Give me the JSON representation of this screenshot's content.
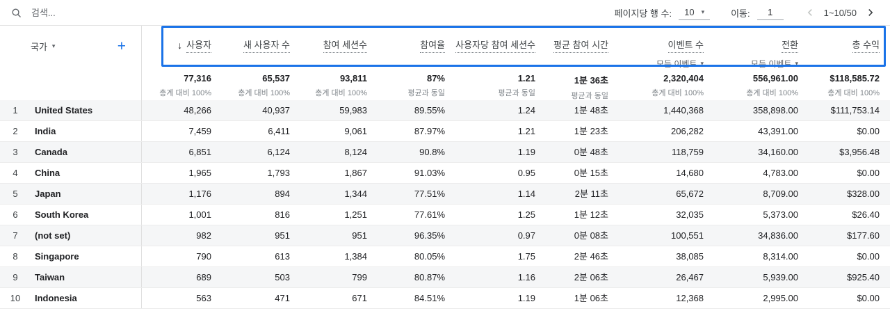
{
  "colors": {
    "accent": "#1a73e8",
    "stripe": "#f5f6f7"
  },
  "toolbar": {
    "search_placeholder": "검색...",
    "rows_per_page_label": "페이지당 행 수:",
    "rows_per_page_value": "10",
    "goto_label": "이동:",
    "goto_value": "1",
    "range_text": "1~10/50"
  },
  "header": {
    "dimension_label": "국가",
    "add_button_label": "+",
    "metrics": [
      {
        "label": "사용자",
        "sorted": true
      },
      {
        "label": "새 사용자 수"
      },
      {
        "label": "참여 세션수"
      },
      {
        "label": "참여율"
      },
      {
        "label": "사용자당 참여 세션수"
      },
      {
        "label": "평균 참여 시간"
      },
      {
        "label": "이벤트 수",
        "sub": "모든 이벤트"
      },
      {
        "label": "전환",
        "sub": "모든 이벤트"
      },
      {
        "label": "총 수익"
      }
    ]
  },
  "totals": {
    "values": [
      "77,316",
      "65,537",
      "93,811",
      "87%",
      "1.21",
      "1분 36초",
      "2,320,404",
      "556,961.00",
      "$118,585.72"
    ],
    "subs": [
      "총계 대비 100%",
      "총계 대비 100%",
      "총계 대비 100%",
      "평균과 동일",
      "평균과 동일",
      "평균과 동일",
      "총계 대비 100%",
      "총계 대비 100%",
      "총계 대비 100%"
    ]
  },
  "rows": [
    {
      "rank": "1",
      "country": "United States",
      "values": [
        "48,266",
        "40,937",
        "59,983",
        "89.55%",
        "1.24",
        "1분 48초",
        "1,440,368",
        "358,898.00",
        "$111,753.14"
      ]
    },
    {
      "rank": "2",
      "country": "India",
      "values": [
        "7,459",
        "6,411",
        "9,061",
        "87.97%",
        "1.21",
        "1분 23초",
        "206,282",
        "43,391.00",
        "$0.00"
      ]
    },
    {
      "rank": "3",
      "country": "Canada",
      "values": [
        "6,851",
        "6,124",
        "8,124",
        "90.8%",
        "1.19",
        "0분 48초",
        "118,759",
        "34,160.00",
        "$3,956.48"
      ]
    },
    {
      "rank": "4",
      "country": "China",
      "values": [
        "1,965",
        "1,793",
        "1,867",
        "91.03%",
        "0.95",
        "0분 15초",
        "14,680",
        "4,783.00",
        "$0.00"
      ]
    },
    {
      "rank": "5",
      "country": "Japan",
      "values": [
        "1,176",
        "894",
        "1,344",
        "77.51%",
        "1.14",
        "2분 11초",
        "65,672",
        "8,709.00",
        "$328.00"
      ]
    },
    {
      "rank": "6",
      "country": "South Korea",
      "values": [
        "1,001",
        "816",
        "1,251",
        "77.61%",
        "1.25",
        "1분 12초",
        "32,035",
        "5,373.00",
        "$26.40"
      ]
    },
    {
      "rank": "7",
      "country": "(not set)",
      "values": [
        "982",
        "951",
        "951",
        "96.35%",
        "0.97",
        "0분 08초",
        "100,551",
        "34,836.00",
        "$177.60"
      ]
    },
    {
      "rank": "8",
      "country": "Singapore",
      "values": [
        "790",
        "613",
        "1,384",
        "80.05%",
        "1.75",
        "2분 46초",
        "38,085",
        "8,314.00",
        "$0.00"
      ]
    },
    {
      "rank": "9",
      "country": "Taiwan",
      "values": [
        "689",
        "503",
        "799",
        "80.87%",
        "1.16",
        "2분 06초",
        "26,467",
        "5,939.00",
        "$925.40"
      ]
    },
    {
      "rank": "10",
      "country": "Indonesia",
      "values": [
        "563",
        "471",
        "671",
        "84.51%",
        "1.19",
        "1분 06초",
        "12,368",
        "2,995.00",
        "$0.00"
      ]
    }
  ]
}
